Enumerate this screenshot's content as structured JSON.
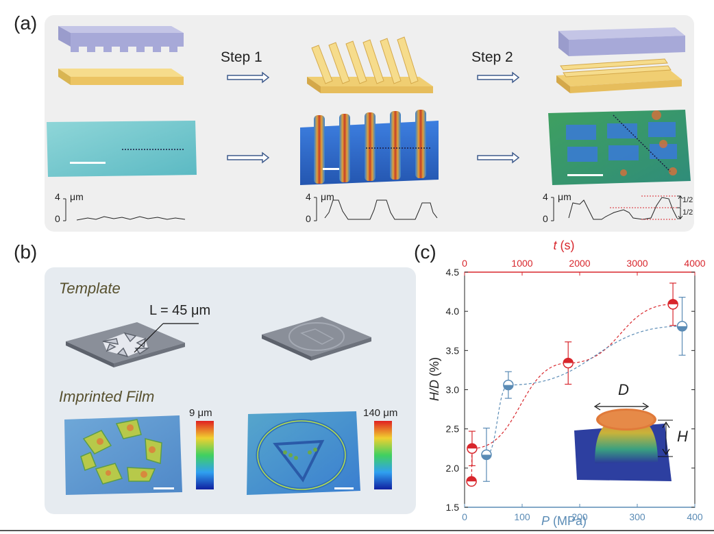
{
  "panels": {
    "a": "(a)",
    "b": "(b)",
    "c": "(c)"
  },
  "panel_a": {
    "step1": "Step 1",
    "step2": "Step 2",
    "profile_unit": "μm",
    "profile_top": "4",
    "profile_bottom": "0",
    "half_upper": "1/2",
    "half_lower": "1/2"
  },
  "panel_b": {
    "template_label": "Template",
    "imprinted_label": "Imprinted Film",
    "length_label": "L = 45 μm",
    "scale1_max": "9 μm",
    "scale2_max": "140 μm"
  },
  "inset": {
    "d_label": "D",
    "h_label": "H"
  },
  "colors": {
    "red": "#d8262c",
    "blue": "#5a8bb5",
    "purple_mold": "#a7a9d8",
    "gold_film": "#f1cf72"
  },
  "chart_data": {
    "type": "scatter",
    "ylabel_italic": "H/D",
    "ylabel_unit": " (%)",
    "ylim": [
      1.5,
      4.5
    ],
    "yticks": [
      "1.5",
      "2.0",
      "2.5",
      "3.0",
      "3.5",
      "4.0",
      "4.5"
    ],
    "bottom_axis": {
      "label_italic": "P",
      "label_unit": " (MPa)",
      "range": [
        0,
        400
      ],
      "ticks": [
        "0",
        "100",
        "200",
        "300",
        "400"
      ],
      "color": "#5a8bb5"
    },
    "top_axis": {
      "label_italic": "t",
      "label_unit": " (s)",
      "range": [
        0,
        4000
      ],
      "ticks": [
        "0",
        "1000",
        "2000",
        "3000",
        "4000"
      ],
      "color": "#d8262c"
    },
    "series": [
      {
        "axis": "top",
        "color": "#d8262c",
        "points": [
          {
            "x": 120,
            "y": 1.83,
            "err": 0
          },
          {
            "x": 130,
            "y": 2.25,
            "err": 0.22
          },
          {
            "x": 1800,
            "y": 3.34,
            "err": 0.27
          },
          {
            "x": 3620,
            "y": 4.09,
            "err": 0.27
          }
        ]
      },
      {
        "axis": "bottom",
        "color": "#5a8bb5",
        "points": [
          {
            "x": 38,
            "y": 2.17,
            "err": 0.34
          },
          {
            "x": 76,
            "y": 3.06,
            "err": 0.17
          },
          {
            "x": 378,
            "y": 3.81,
            "err": 0.37
          }
        ]
      }
    ]
  }
}
